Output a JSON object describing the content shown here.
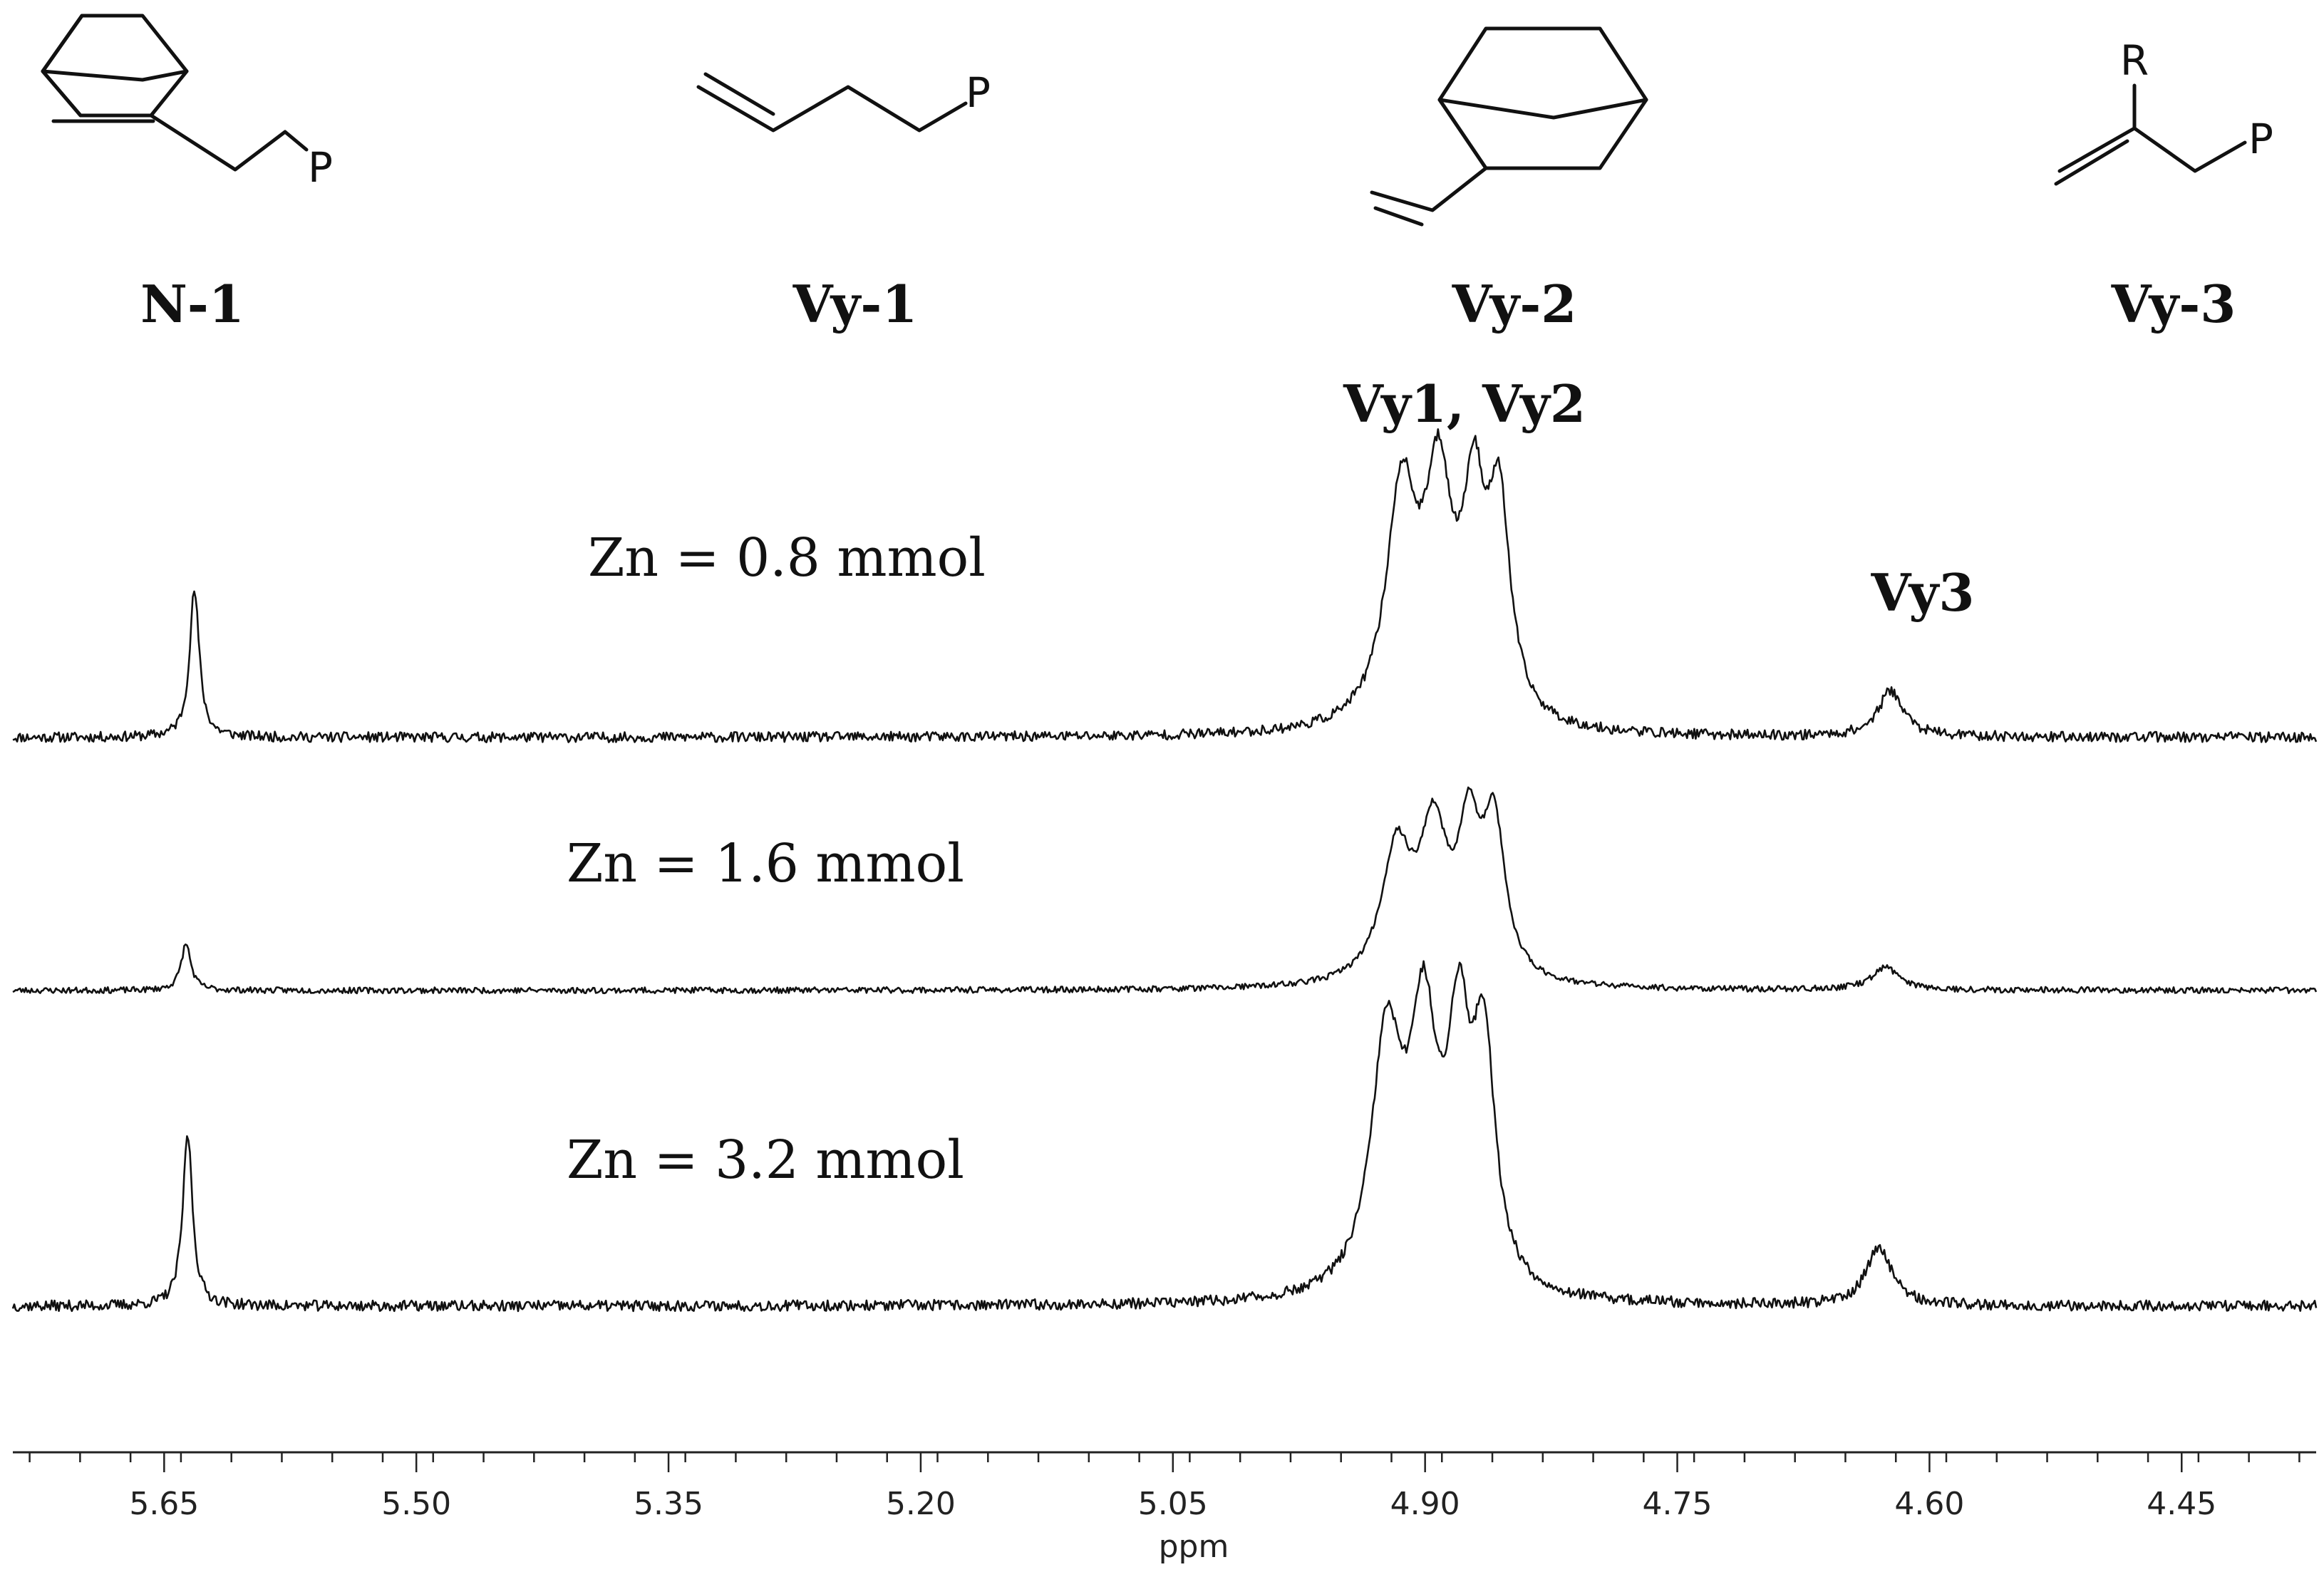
{
  "structures": [
    {
      "label": "N-1",
      "icon": "norbornene-ethyl-p-structure-icon",
      "atoms": [
        "P"
      ]
    },
    {
      "label": "Vy-1",
      "icon": "butenyl-p-structure-icon",
      "atoms": [
        "P"
      ]
    },
    {
      "label": "Vy-2",
      "icon": "vinyl-norbornane-structure-icon",
      "atoms": []
    },
    {
      "label": "Vy-3",
      "icon": "vinylidene-p-structure-icon",
      "atoms": [
        "R",
        "P"
      ]
    }
  ],
  "chart_data": {
    "type": "line",
    "title": "",
    "xlabel": "ppm",
    "ylabel": "",
    "x_reversed": true,
    "xlim": [
      5.74,
      4.37
    ],
    "xticks": [
      5.65,
      5.5,
      5.35,
      5.2,
      5.05,
      4.9,
      4.75,
      4.6,
      4.45
    ],
    "xtick_labels": [
      "5.65",
      "5.50",
      "5.35",
      "5.20",
      "5.05",
      "4.90",
      "4.75",
      "4.60",
      "4.45"
    ],
    "minor_tick_step": 0.03,
    "grid": false,
    "peak_labels": [
      {
        "text": "Vy1, Vy2",
        "x": 4.88
      },
      {
        "text": "Vy3",
        "x": 4.62
      }
    ],
    "series": [
      {
        "name": "Zn = 0.8 mmol",
        "baseline": 0,
        "noise": 0.022,
        "seed": 11,
        "peaks": [
          {
            "x": 5.632,
            "height": 0.64,
            "width": 0.0035
          },
          {
            "x": 4.914,
            "height": 1.0,
            "width": 0.011
          },
          {
            "x": 4.892,
            "height": 0.97,
            "width": 0.01
          },
          {
            "x": 4.871,
            "height": 0.86,
            "width": 0.008
          },
          {
            "x": 4.856,
            "height": 0.9,
            "width": 0.008
          },
          {
            "x": 4.623,
            "height": 0.2,
            "width": 0.009
          }
        ]
      },
      {
        "name": "Zn = 1.6 mmol",
        "baseline": 0,
        "noise": 0.016,
        "seed": 23,
        "peaks": [
          {
            "x": 5.637,
            "height": 0.25,
            "width": 0.0035
          },
          {
            "x": 4.917,
            "height": 0.69,
            "width": 0.011
          },
          {
            "x": 4.895,
            "height": 0.75,
            "width": 0.01
          },
          {
            "x": 4.874,
            "height": 0.72,
            "width": 0.008
          },
          {
            "x": 4.859,
            "height": 0.8,
            "width": 0.008
          },
          {
            "x": 4.626,
            "height": 0.12,
            "width": 0.01
          }
        ]
      },
      {
        "name": "Zn = 3.2 mmol",
        "baseline": 0,
        "noise": 0.022,
        "seed": 37,
        "peaks": [
          {
            "x": 5.636,
            "height": 0.7,
            "width": 0.0035
          },
          {
            "x": 4.923,
            "height": 1.0,
            "width": 0.011
          },
          {
            "x": 4.901,
            "height": 1.02,
            "width": 0.01
          },
          {
            "x": 4.88,
            "height": 0.93,
            "width": 0.008
          },
          {
            "x": 4.865,
            "height": 0.95,
            "width": 0.008
          },
          {
            "x": 4.63,
            "height": 0.24,
            "width": 0.009
          }
        ]
      }
    ]
  }
}
